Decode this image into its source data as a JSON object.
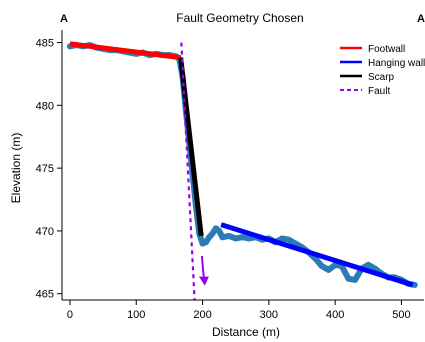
{
  "chart_data": {
    "type": "line",
    "title": "Fault Geometry Chosen",
    "corner_labels": {
      "left": "A",
      "right": "A'"
    },
    "xlabel": "Distance (m)",
    "ylabel": "Elevation (m)",
    "xlim": [
      -12,
      534
    ],
    "ylim": [
      464.5,
      486.0
    ],
    "xticks": [
      0,
      100,
      200,
      300,
      400,
      500
    ],
    "yticks": [
      465,
      470,
      475,
      480,
      485
    ],
    "xtick_labels": [
      "0",
      "100",
      "200",
      "300",
      "400",
      "500"
    ],
    "ytick_labels": [
      "465",
      "470",
      "475",
      "480",
      "485"
    ],
    "grid": false,
    "legend_position": "top-right",
    "legend": [
      {
        "label": "Footwall",
        "color": "#ff0000",
        "style": "solid"
      },
      {
        "label": "Hanging wall",
        "color": "#0000ff",
        "style": "solid"
      },
      {
        "label": "Scarp",
        "color": "#000000",
        "style": "solid"
      },
      {
        "label": "Fault",
        "color": "#9900ee",
        "style": "dashed"
      }
    ],
    "profile": {
      "color": "#2b7bb9",
      "x": [
        0,
        10,
        20,
        30,
        40,
        50,
        60,
        70,
        80,
        90,
        100,
        110,
        120,
        130,
        140,
        150,
        160,
        165,
        170,
        175,
        180,
        185,
        190,
        195,
        200,
        205,
        210,
        215,
        220,
        225,
        230,
        240,
        250,
        260,
        270,
        280,
        290,
        300,
        310,
        320,
        330,
        340,
        350,
        360,
        370,
        380,
        390,
        400,
        410,
        420,
        430,
        440,
        450,
        460,
        470,
        480,
        490,
        500,
        510,
        520
      ],
      "y": [
        484.7,
        484.8,
        484.7,
        484.8,
        484.6,
        484.5,
        484.4,
        484.4,
        484.3,
        484.2,
        484.1,
        484.2,
        484.0,
        484.1,
        484.0,
        484.0,
        483.9,
        483.7,
        482.2,
        479.5,
        477.0,
        474.5,
        472.0,
        469.8,
        469.0,
        469.1,
        469.5,
        469.8,
        470.2,
        470.0,
        469.5,
        469.6,
        469.4,
        469.5,
        469.4,
        469.5,
        469.3,
        469.4,
        469.1,
        469.4,
        469.3,
        469.0,
        468.7,
        468.3,
        467.8,
        467.2,
        466.9,
        467.3,
        467.2,
        466.2,
        466.1,
        467.0,
        467.3,
        467.0,
        466.6,
        466.3,
        466.3,
        466.1,
        465.8,
        465.7
      ]
    },
    "lines": {
      "footwall": {
        "x": [
          0,
          167
        ],
        "y": [
          484.9,
          483.8
        ]
      },
      "hanging_wall": {
        "x": [
          228,
          517
        ],
        "y": [
          470.5,
          465.7
        ]
      },
      "scarp": {
        "x": [
          167,
          198
        ],
        "y": [
          483.8,
          469.6
        ]
      },
      "fault": {
        "x": [
          168,
          188
        ],
        "y": [
          485.0,
          464.5
        ]
      }
    },
    "fault_arrow": {
      "x": [
        199,
        202
      ],
      "y": [
        468.0,
        465.8
      ]
    }
  }
}
